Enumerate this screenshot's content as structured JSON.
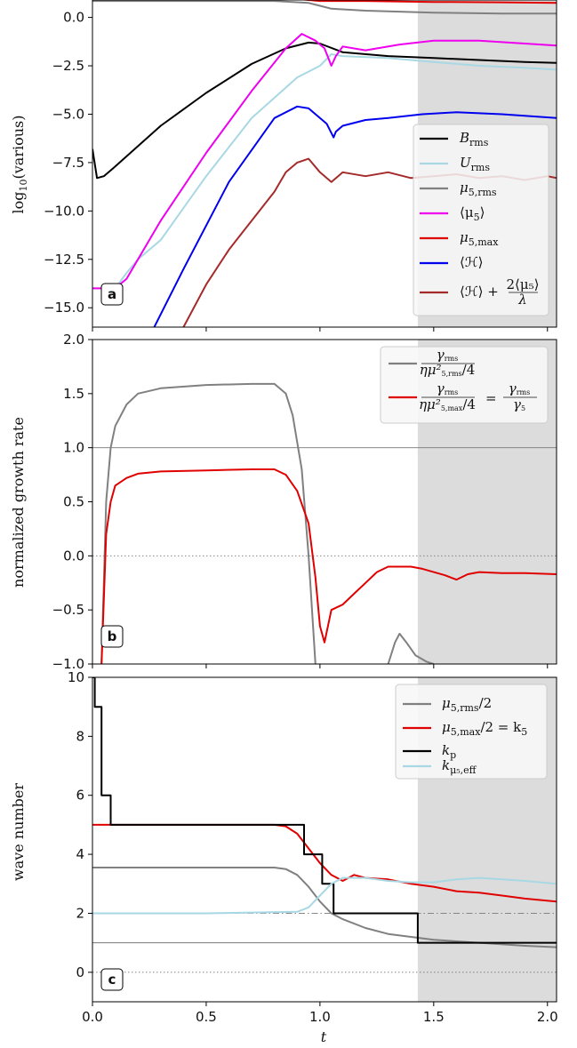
{
  "chart_data": [
    {
      "panel": "a",
      "type": "line",
      "ylabel": "log₁₀(various)",
      "xlim": [
        0.0,
        2.04
      ],
      "ylim": [
        -16.0,
        0.9
      ],
      "yticks": [
        0.0,
        -2.5,
        -5.0,
        -7.5,
        -10.0,
        -12.5,
        -15.0
      ],
      "ytick_labels": [
        "0.0",
        "−2.5",
        "−5.0",
        "−7.5",
        "−10.0",
        "−12.5",
        "−15.0"
      ],
      "shaded_region": [
        1.43,
        2.04
      ],
      "legend_position": "lower-right",
      "series": [
        {
          "name": "B_rms",
          "color": "#000000",
          "legend": "B",
          "legend_sub": "rms",
          "x": [
            0.0,
            0.02,
            0.05,
            0.1,
            0.3,
            0.5,
            0.7,
            0.85,
            0.95,
            1.0,
            1.1,
            1.3,
            1.5,
            1.7,
            1.9,
            2.04
          ],
          "y": [
            -6.8,
            -8.3,
            -8.2,
            -7.7,
            -5.6,
            -3.9,
            -2.4,
            -1.6,
            -1.3,
            -1.35,
            -1.8,
            -2.0,
            -2.1,
            -2.2,
            -2.3,
            -2.35
          ]
        },
        {
          "name": "U_rms",
          "color": "#a8d8e3",
          "legend": "U",
          "legend_sub": "rms",
          "x": [
            0.0,
            0.1,
            0.15,
            0.2,
            0.3,
            0.5,
            0.7,
            0.9,
            1.0,
            1.05,
            1.1,
            1.3,
            1.5,
            1.7,
            1.9,
            2.04
          ],
          "y": [
            -14.0,
            -14.0,
            -13.2,
            -12.5,
            -11.5,
            -8.2,
            -5.2,
            -3.1,
            -2.5,
            -1.9,
            -2.0,
            -2.1,
            -2.3,
            -2.5,
            -2.6,
            -2.7
          ]
        },
        {
          "name": "μ5,rms",
          "color": "#808080",
          "legend": "μ",
          "legend_sub": "5,rms",
          "x": [
            0.0,
            0.5,
            0.8,
            0.95,
            1.0,
            1.05,
            1.2,
            1.5,
            1.8,
            2.04
          ],
          "y": [
            0.85,
            0.85,
            0.85,
            0.75,
            0.6,
            0.45,
            0.35,
            0.25,
            0.2,
            0.2
          ]
        },
        {
          "name": "⟨μ5⟩",
          "color": "#ee00ee",
          "legend": "⟨μ5⟩",
          "legend_sub": "",
          "x": [
            0.0,
            0.1,
            0.15,
            0.2,
            0.3,
            0.5,
            0.7,
            0.85,
            0.92,
            0.98,
            1.02,
            1.05,
            1.07,
            1.1,
            1.2,
            1.35,
            1.5,
            1.7,
            1.9,
            2.04
          ],
          "y": [
            -14.0,
            -14.0,
            -13.5,
            -12.5,
            -10.5,
            -7.0,
            -3.8,
            -1.6,
            -0.85,
            -1.2,
            -1.6,
            -2.5,
            -2.0,
            -1.5,
            -1.7,
            -1.4,
            -1.2,
            -1.2,
            -1.35,
            -1.45
          ]
        },
        {
          "name": "μ5,max",
          "color": "#e00000",
          "legend": "μ",
          "legend_sub": "5,max",
          "x": [
            0.0,
            0.5,
            0.8,
            0.95,
            1.0,
            1.05,
            1.2,
            1.5,
            1.8,
            2.04
          ],
          "y": [
            1.05,
            1.05,
            1.05,
            0.9,
            0.85,
            0.85,
            0.85,
            0.8,
            0.78,
            0.75
          ]
        },
        {
          "name": "⟨H⟩",
          "color": "#0000ee",
          "legend": "⟨ℋ⟩",
          "legend_sub": "",
          "x": [
            0.25,
            0.4,
            0.6,
            0.8,
            0.9,
            0.95,
            1.0,
            1.03,
            1.06,
            1.07,
            1.1,
            1.2,
            1.3,
            1.45,
            1.6,
            1.8,
            2.04
          ],
          "y": [
            -16.5,
            -13.0,
            -8.5,
            -5.2,
            -4.6,
            -4.7,
            -5.2,
            -5.5,
            -6.2,
            -5.9,
            -5.6,
            -5.3,
            -5.2,
            -5.0,
            -4.9,
            -5.0,
            -5.2
          ]
        },
        {
          "name": "⟨H⟩+2⟨μ5⟩/λ",
          "color": "#a52a2a",
          "legend": "⟨ℋ⟩ + 2⟨μ5⟩/λ",
          "legend_sub": "",
          "x": [
            0.4,
            0.5,
            0.6,
            0.7,
            0.8,
            0.85,
            0.9,
            0.95,
            1.0,
            1.05,
            1.1,
            1.2,
            1.3,
            1.4,
            1.5,
            1.6,
            1.7,
            1.8,
            1.9,
            2.0,
            2.04
          ],
          "y": [
            -16.0,
            -13.8,
            -12.0,
            -10.5,
            -9.0,
            -8.0,
            -7.5,
            -7.3,
            -8.0,
            -8.5,
            -8.0,
            -8.2,
            -8.0,
            -8.3,
            -8.2,
            -8.1,
            -8.3,
            -8.2,
            -8.4,
            -8.2,
            -8.3
          ]
        }
      ]
    },
    {
      "panel": "b",
      "type": "line",
      "ylabel": "normalized growth rate",
      "xlim": [
        0.0,
        2.04
      ],
      "ylim": [
        -1.0,
        2.0
      ],
      "yticks": [
        2.0,
        1.5,
        1.0,
        0.5,
        0.0,
        -0.5,
        -1.0
      ],
      "ytick_labels": [
        "2.0",
        "1.5",
        "1.0",
        "0.5",
        "0.0",
        "−0.5",
        "−1.0"
      ],
      "hlines": [
        {
          "y": 1.0,
          "style": "solid"
        },
        {
          "y": 0.0,
          "style": "dotted"
        }
      ],
      "shaded_region": [
        1.43,
        2.04
      ],
      "legend_position": "top-right",
      "series": [
        {
          "name": "γrms/(ημ²5,rms/4)",
          "color": "#808080",
          "legend": "γrms / (η μ²5,rms/4)",
          "x": [
            0.04,
            0.06,
            0.08,
            0.1,
            0.15,
            0.2,
            0.3,
            0.5,
            0.7,
            0.8,
            0.85,
            0.88,
            0.92,
            0.95,
            0.98
          ],
          "y": [
            -1.0,
            0.5,
            1.0,
            1.2,
            1.4,
            1.5,
            1.55,
            1.58,
            1.59,
            1.59,
            1.5,
            1.3,
            0.8,
            0.0,
            -1.0
          ]
        },
        {
          "name": "γrms/(ημ²5,max/4)",
          "color": "#808080",
          "legend": "",
          "x": [
            1.3,
            1.33,
            1.35,
            1.38,
            1.42,
            1.47,
            1.5
          ],
          "y": [
            -1.0,
            -0.8,
            -0.72,
            -0.8,
            -0.92,
            -0.98,
            -1.0
          ]
        },
        {
          "name": "γrms/(ημ²5,max/4) = γrms/γ5",
          "color": "#e00000",
          "legend": "γrms / (η μ²5,max/4) = γrms/γ5",
          "x": [
            0.04,
            0.05,
            0.06,
            0.08,
            0.1,
            0.15,
            0.2,
            0.3,
            0.5,
            0.7,
            0.8,
            0.85,
            0.9,
            0.95,
            0.98,
            1.0,
            1.02,
            1.05,
            1.1,
            1.15,
            1.2,
            1.25,
            1.3,
            1.35,
            1.4,
            1.45,
            1.5,
            1.55,
            1.6,
            1.65,
            1.7,
            1.8,
            1.9,
            2.04
          ],
          "y": [
            -1.0,
            -0.4,
            0.2,
            0.5,
            0.65,
            0.72,
            0.76,
            0.78,
            0.79,
            0.8,
            0.8,
            0.75,
            0.6,
            0.3,
            -0.2,
            -0.65,
            -0.8,
            -0.5,
            -0.45,
            -0.35,
            -0.25,
            -0.15,
            -0.1,
            -0.1,
            -0.1,
            -0.12,
            -0.15,
            -0.18,
            -0.22,
            -0.17,
            -0.15,
            -0.16,
            -0.16,
            -0.17
          ]
        }
      ]
    },
    {
      "panel": "c",
      "type": "line",
      "ylabel": "wave number",
      "xlabel": "t",
      "xlim": [
        0.0,
        2.04
      ],
      "ylim": [
        -1.0,
        10.0
      ],
      "xticks": [
        0.0,
        0.5,
        1.0,
        1.5,
        2.0
      ],
      "xtick_labels": [
        "0.0",
        "0.5",
        "1.0",
        "1.5",
        "2.0"
      ],
      "yticks": [
        10,
        8,
        6,
        4,
        2,
        0
      ],
      "ytick_labels": [
        "10",
        "8",
        "6",
        "4",
        "2",
        "0"
      ],
      "hlines": [
        {
          "y": 2.0,
          "style": "dashdot"
        },
        {
          "y": 1.0,
          "style": "solid"
        },
        {
          "y": 0.0,
          "style": "dotted"
        }
      ],
      "shaded_region": [
        1.43,
        2.04
      ],
      "legend_position": "top-right",
      "series": [
        {
          "name": "μ5,rms/2",
          "color": "#808080",
          "legend": "μ5,rms/2",
          "x": [
            0.0,
            0.5,
            0.8,
            0.85,
            0.9,
            0.95,
            1.0,
            1.05,
            1.1,
            1.2,
            1.3,
            1.5,
            1.7,
            1.9,
            2.04
          ],
          "y": [
            3.55,
            3.55,
            3.55,
            3.5,
            3.3,
            2.9,
            2.4,
            2.0,
            1.8,
            1.5,
            1.3,
            1.1,
            1.0,
            0.9,
            0.85
          ]
        },
        {
          "name": "μ5,max/2 = k5",
          "color": "#e00000",
          "legend": "μ5,max/2 = k5",
          "x": [
            0.0,
            0.5,
            0.8,
            0.85,
            0.9,
            0.95,
            1.0,
            1.05,
            1.1,
            1.15,
            1.2,
            1.3,
            1.4,
            1.5,
            1.6,
            1.7,
            1.8,
            1.9,
            2.04
          ],
          "y": [
            5.0,
            5.0,
            5.0,
            4.95,
            4.7,
            4.2,
            3.7,
            3.3,
            3.1,
            3.3,
            3.2,
            3.15,
            3.0,
            2.9,
            2.75,
            2.7,
            2.6,
            2.5,
            2.4
          ]
        },
        {
          "name": "kp",
          "color": "#000000",
          "legend": "kp",
          "step": true,
          "x": [
            0.0,
            0.01,
            0.01,
            0.04,
            0.04,
            0.08,
            0.08,
            0.93,
            0.93,
            1.01,
            1.01,
            1.06,
            1.06,
            1.43,
            1.43,
            2.04
          ],
          "y": [
            10.0,
            10.0,
            9.0,
            9.0,
            6.0,
            6.0,
            5.0,
            5.0,
            4.0,
            4.0,
            3.0,
            3.0,
            2.0,
            2.0,
            1.0,
            1.0
          ]
        },
        {
          "name": "kμ5,eff",
          "color": "#a8d8e3",
          "legend": "kμ5,eff",
          "x": [
            0.0,
            0.5,
            0.9,
            0.95,
            1.0,
            1.05,
            1.1,
            1.15,
            1.2,
            1.3,
            1.4,
            1.5,
            1.6,
            1.7,
            1.8,
            1.9,
            2.04
          ],
          "y": [
            2.0,
            2.0,
            2.05,
            2.2,
            2.6,
            3.0,
            3.2,
            3.2,
            3.2,
            3.1,
            3.05,
            3.05,
            3.15,
            3.2,
            3.15,
            3.1,
            3.0
          ]
        }
      ]
    }
  ],
  "panel_letters": [
    "a",
    "b",
    "c"
  ],
  "x_axis_label": "t",
  "legend_a": {
    "l1": "B",
    "l1s": "rms",
    "l2": "U",
    "l2s": "rms",
    "l3": "μ",
    "l3s": "5,rms",
    "l4": "⟨μ",
    "l4s": "5",
    "l4e": "⟩",
    "l5": "μ",
    "l5s": "5,max",
    "l6": "⟨ℋ⟩",
    "l7a": "⟨ℋ⟩ +",
    "l7num": "2⟨μ₅⟩",
    "l7den": "λ"
  },
  "legend_b": {
    "l1num": "γ",
    "l1nums": "rms",
    "l1den": "ημ²",
    "l1dens": "5,rms",
    "l1dene": "/4",
    "l2num": "γ",
    "l2nums": "rms",
    "l2den": "ημ²",
    "l2dens": "5,max",
    "l2dene": "/4",
    "eq": "=",
    "l2rnum": "γ",
    "l2rnums": "rms",
    "l2rden": "γ",
    "l2rdens": "5"
  },
  "legend_c": {
    "l1": "μ",
    "l1s": "5,rms",
    "l1e": "/2",
    "l2": "μ",
    "l2s": "5,max",
    "l2e": "/2 = k",
    "l2s2": "5",
    "l3": "k",
    "l3s": "p",
    "l4": "k",
    "l4s": "μ₅,eff"
  }
}
